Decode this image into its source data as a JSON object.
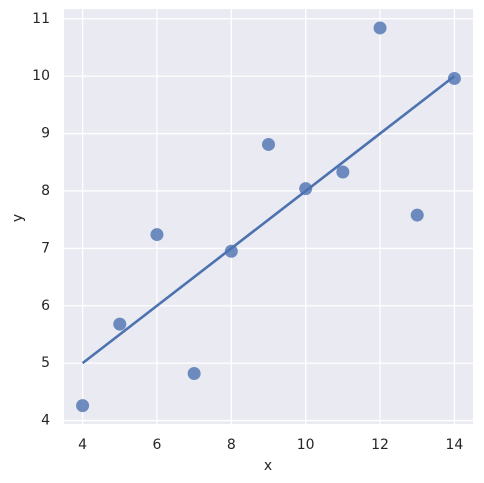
{
  "chart_data": {
    "type": "scatter",
    "x": [
      10,
      8,
      13,
      9,
      11,
      14,
      6,
      4,
      12,
      7,
      5
    ],
    "values": [
      8.04,
      6.95,
      7.58,
      8.81,
      8.33,
      9.96,
      7.24,
      4.26,
      10.84,
      4.82,
      5.68
    ],
    "color": "#4c72b0",
    "line": {
      "x": [
        4,
        14
      ],
      "values": [
        5.0,
        10.0
      ],
      "color": "#4c72b0"
    },
    "x_label": "x",
    "y_label": "y",
    "xlim": [
      3.5,
      14.5
    ],
    "ylim": [
      3.94,
      11.17
    ],
    "xticks": [
      4,
      6,
      8,
      10,
      12,
      14
    ],
    "yticks": [
      4,
      5,
      6,
      7,
      8,
      9,
      10,
      11
    ],
    "grid": true
  }
}
